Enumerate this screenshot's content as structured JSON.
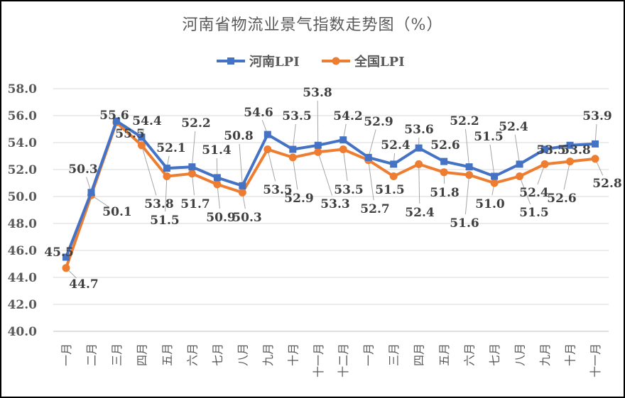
{
  "chart_data": {
    "type": "line",
    "title": "河南省物流业景气指数走势图（%）",
    "categories": [
      "一月",
      "二月",
      "三月",
      "四月",
      "五月",
      "六月",
      "七月",
      "八月",
      "九月",
      "十月",
      "十一月",
      "十二月",
      "一月",
      "三月",
      "四月",
      "五月",
      "六月",
      "七月",
      "八月",
      "九月",
      "十月",
      "十一月"
    ],
    "series": [
      {
        "name": "河南LPI",
        "color": "#4472C4",
        "marker": "square",
        "values": [
          45.5,
          50.3,
          55.6,
          54.4,
          52.1,
          52.2,
          51.4,
          50.8,
          54.6,
          53.5,
          53.8,
          54.2,
          52.9,
          52.4,
          53.6,
          52.6,
          52.2,
          51.5,
          52.4,
          53.5,
          53.8,
          53.9
        ]
      },
      {
        "name": "全国LPI",
        "color": "#ED7D31",
        "marker": "circle",
        "values": [
          44.7,
          50.1,
          55.5,
          53.8,
          51.5,
          51.7,
          50.9,
          50.3,
          53.5,
          52.9,
          53.3,
          53.5,
          52.7,
          51.5,
          52.4,
          51.8,
          51.6,
          51.0,
          51.5,
          52.4,
          52.6,
          52.8
        ]
      }
    ],
    "ylim": [
      40,
      58
    ],
    "yticks": [
      "40.0",
      "42.0",
      "44.0",
      "46.0",
      "48.0",
      "50.0",
      "52.0",
      "54.0",
      "56.0",
      "58.0"
    ],
    "grid": true,
    "legend": "top-center",
    "xlabel": "",
    "ylabel": ""
  }
}
